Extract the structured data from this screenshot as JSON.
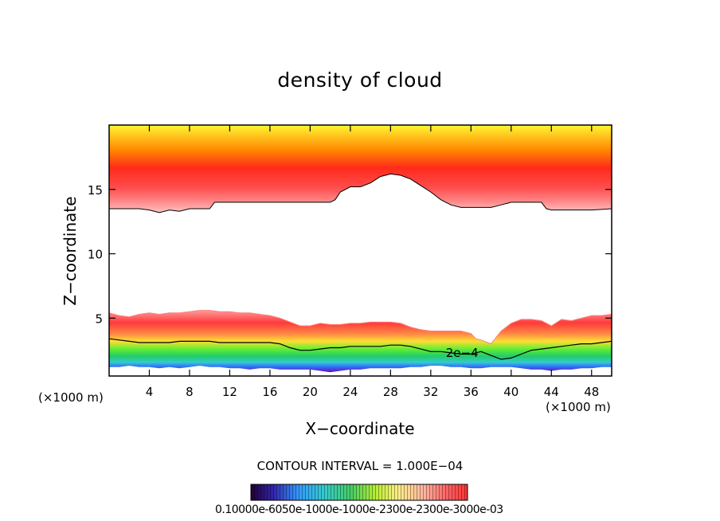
{
  "chart_data": {
    "type": "heatmap",
    "title": "density of cloud",
    "xlabel": "X−coordinate",
    "ylabel": "Z−coordinate",
    "x_unit_left": "(×1000 m)",
    "x_unit_right": "(×1000 m)",
    "xlim": [
      0,
      50
    ],
    "ylim": [
      0.5,
      20
    ],
    "x_ticks": [
      4,
      8,
      12,
      16,
      20,
      24,
      28,
      32,
      36,
      40,
      44,
      48
    ],
    "y_ticks": [
      5,
      10,
      15
    ],
    "contour_interval_text": "CONTOUR INTERVAL = 1.000E−04",
    "contour_label": "2e−4",
    "colorbar_labels_text": "0.10000e-6050e-1000e-1000e-2300e-2300e-3000e-03",
    "upper_layer": {
      "x": [
        0,
        1,
        2,
        3,
        4,
        5,
        6,
        7,
        8,
        9,
        10,
        10.5,
        12,
        14,
        16,
        18,
        20,
        21,
        22,
        22.5,
        23,
        24,
        25,
        26,
        27,
        28,
        29,
        30,
        31,
        32,
        33,
        34,
        35,
        36,
        37,
        38,
        39,
        40,
        41,
        42,
        43,
        43.5,
        44,
        46,
        48,
        50
      ],
      "base_z": [
        13.5,
        13.5,
        13.5,
        13.5,
        13.4,
        13.2,
        13.4,
        13.3,
        13.5,
        13.5,
        13.5,
        14.0,
        14.0,
        14.0,
        14.0,
        14.0,
        14.0,
        14.0,
        14.0,
        14.2,
        14.8,
        15.2,
        15.2,
        15.5,
        16.0,
        16.2,
        16.1,
        15.8,
        15.3,
        14.8,
        14.2,
        13.8,
        13.6,
        13.6,
        13.6,
        13.6,
        13.8,
        14.0,
        14.0,
        14.0,
        14.0,
        13.5,
        13.4,
        13.4,
        13.4,
        13.5
      ]
    },
    "lower_layer": {
      "x": [
        0,
        1,
        2,
        3,
        4,
        5,
        6,
        7,
        8,
        9,
        10,
        11,
        12,
        13,
        14,
        15,
        16,
        17,
        18,
        19,
        20,
        21,
        22,
        23,
        24,
        25,
        26,
        27,
        28,
        29,
        30,
        31,
        32,
        33,
        34,
        35,
        36,
        36.5,
        37,
        38,
        39,
        40,
        41,
        42,
        43,
        44,
        45,
        46,
        47,
        48,
        49,
        50
      ],
      "top_z": [
        5.4,
        5.2,
        5.1,
        5.3,
        5.4,
        5.3,
        5.4,
        5.4,
        5.5,
        5.6,
        5.6,
        5.5,
        5.5,
        5.4,
        5.4,
        5.3,
        5.2,
        5.0,
        4.7,
        4.4,
        4.4,
        4.6,
        4.5,
        4.5,
        4.6,
        4.6,
        4.7,
        4.7,
        4.7,
        4.6,
        4.3,
        4.1,
        4.0,
        4.0,
        4.0,
        4.0,
        3.8,
        3.4,
        3.3,
        3.0,
        4.0,
        4.6,
        4.9,
        4.9,
        4.8,
        4.4,
        4.9,
        4.8,
        5.0,
        5.2,
        5.2,
        5.3
      ],
      "contour_2e4_z": [
        3.4,
        3.3,
        3.2,
        3.1,
        3.1,
        3.1,
        3.1,
        3.2,
        3.2,
        3.2,
        3.2,
        3.1,
        3.1,
        3.1,
        3.1,
        3.1,
        3.1,
        3.0,
        2.7,
        2.5,
        2.5,
        2.6,
        2.7,
        2.7,
        2.8,
        2.8,
        2.8,
        2.8,
        2.9,
        2.9,
        2.8,
        2.6,
        2.4,
        2.4,
        2.3,
        2.2,
        2.2,
        2.3,
        2.4,
        2.1,
        1.8,
        1.9,
        2.2,
        2.5,
        2.6,
        2.7,
        2.8,
        2.9,
        3.0,
        3.0,
        3.1,
        3.2
      ],
      "bottom_z": [
        1.2,
        1.2,
        1.3,
        1.2,
        1.2,
        1.1,
        1.2,
        1.1,
        1.2,
        1.3,
        1.2,
        1.2,
        1.1,
        1.1,
        1.0,
        1.1,
        1.1,
        1.0,
        1.0,
        1.0,
        1.0,
        0.9,
        0.8,
        0.9,
        1.0,
        1.0,
        1.1,
        1.1,
        1.1,
        1.1,
        1.2,
        1.2,
        1.3,
        1.3,
        1.2,
        1.2,
        1.1,
        1.1,
        1.1,
        1.2,
        1.2,
        1.2,
        1.1,
        1.0,
        1.0,
        0.9,
        1.0,
        1.0,
        1.1,
        1.1,
        1.2,
        1.2
      ]
    },
    "colorscale": [
      "#330066",
      "#3333cc",
      "#3399ff",
      "#33cccc",
      "#33cc66",
      "#66ee33",
      "#ccee33",
      "#ffee66",
      "#ffcc99",
      "#ff9999",
      "#ff6666",
      "#ff3333"
    ]
  }
}
